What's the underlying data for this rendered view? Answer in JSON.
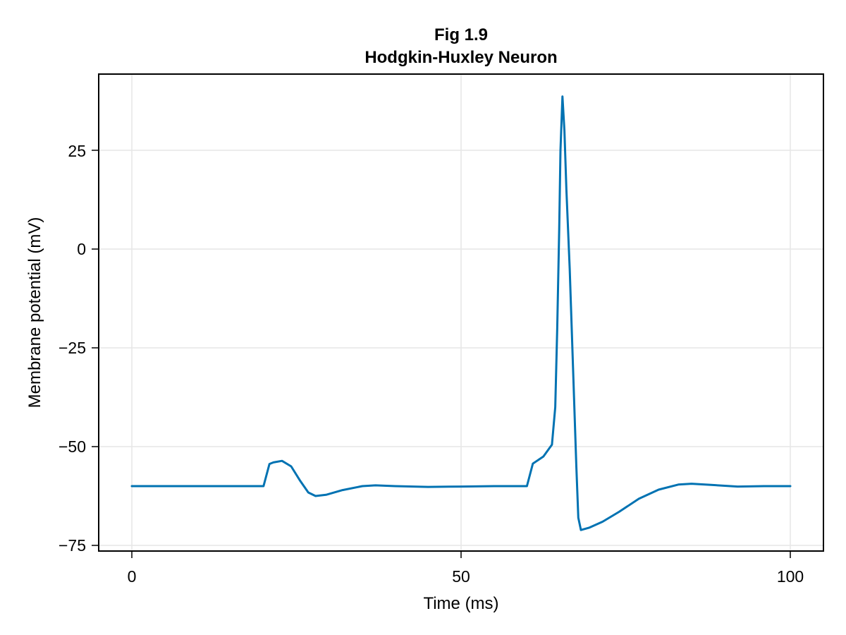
{
  "chart_data": {
    "type": "line",
    "title": "Fig 1.9",
    "subtitle": "Hodgkin-Huxley Neuron",
    "xlabel": "Time (ms)",
    "ylabel": "Membrane potential (mV)",
    "xlim": [
      -5,
      105
    ],
    "ylim": [
      -76.5,
      43.5
    ],
    "xticks": [
      0,
      50,
      100
    ],
    "xtick_labels": [
      "0",
      "50",
      "100"
    ],
    "yticks": [
      25,
      0,
      -25,
      -50,
      -75
    ],
    "ytick_labels": [
      "25",
      "0",
      "−25",
      "−50",
      "−75"
    ],
    "grid": true,
    "legend": null,
    "line_color": "#0072b2",
    "series": [
      {
        "name": "V",
        "x": [
          0,
          10,
          20,
          20.9,
          21.5,
          22.8,
          24.2,
          25.5,
          26.8,
          27.9,
          29.5,
          32,
          35,
          37,
          40,
          45,
          50,
          55,
          60,
          60.9,
          62.5,
          63.8,
          64.3,
          64.6,
          64.9,
          65.1,
          65.4,
          65.7,
          66.0,
          66.5,
          67.0,
          67.5,
          67.8,
          68.2,
          69.5,
          71.5,
          74,
          77,
          80,
          83,
          85,
          88,
          92,
          96,
          100
        ],
        "values": [
          -60,
          -60,
          -60,
          -54.4,
          -54.0,
          -53.6,
          -55.0,
          -58.5,
          -61.6,
          -62.5,
          -62.2,
          -61.0,
          -60.0,
          -59.8,
          -60.0,
          -60.2,
          -60.1,
          -60.0,
          -60.0,
          -54.3,
          -52.5,
          -49.5,
          -40,
          -20,
          5,
          25,
          38.6,
          30,
          15,
          -5,
          -30,
          -55,
          -68,
          -71.1,
          -70.5,
          -69.0,
          -66.5,
          -63.2,
          -60.9,
          -59.6,
          -59.4,
          -59.7,
          -60.1,
          -60.0,
          -60.0
        ]
      }
    ]
  },
  "page": {
    "title_line1": "Fig 1.9",
    "title_line2": "Hodgkin-Huxley Neuron",
    "xlabel": "Time (ms)",
    "ylabel": "Membrane potential (mV)",
    "xtick_labels": [
      "0",
      "50",
      "100"
    ],
    "ytick_labels": [
      "25",
      "0",
      "−25",
      "−50",
      "−75"
    ]
  }
}
